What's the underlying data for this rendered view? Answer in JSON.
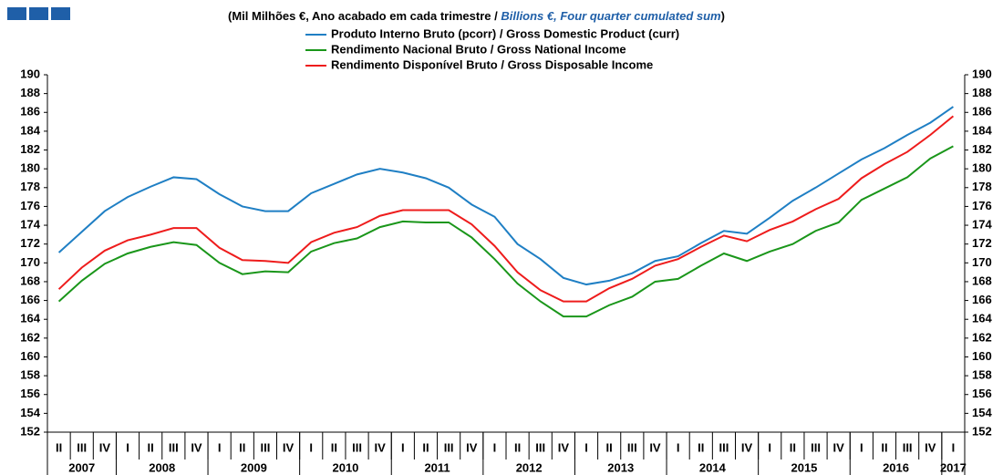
{
  "chart_data": {
    "type": "line",
    "title": "(Mil Milhões €, Ano acabado em cada trimestre /",
    "title_en": "Billions €, Four quarter cumulated sum",
    "title_close": ")",
    "categories": [
      "II",
      "III",
      "IV",
      "I",
      "II",
      "III",
      "IV",
      "I",
      "II",
      "III",
      "IV",
      "I",
      "II",
      "III",
      "IV",
      "I",
      "II",
      "III",
      "IV",
      "I",
      "II",
      "III",
      "IV",
      "I",
      "II",
      "III",
      "IV",
      "I",
      "II",
      "III",
      "IV",
      "I",
      "II",
      "III",
      "IV",
      "I",
      "II",
      "III",
      "IV",
      "I"
    ],
    "years": [
      "2007",
      "2008",
      "2009",
      "2010",
      "2011",
      "2012",
      "2013",
      "2014",
      "2015",
      "2016",
      "2017"
    ],
    "series": [
      {
        "name": "Produto Interno Bruto (pcorr) / Gross Domestic Product (curr)",
        "color": "#1f7fc4",
        "values": [
          171.1,
          173.3,
          175.5,
          177.0,
          178.1,
          179.1,
          178.9,
          177.3,
          176.0,
          175.5,
          175.5,
          177.4,
          178.4,
          179.4,
          180.0,
          179.6,
          179.0,
          178.0,
          176.2,
          174.9,
          172.0,
          170.4,
          168.4,
          167.7,
          168.1,
          168.9,
          170.2,
          170.7,
          172.1,
          173.4,
          173.1,
          174.8,
          176.6,
          178.0,
          179.5,
          181.0,
          182.2,
          183.6,
          184.9,
          186.6
        ]
      },
      {
        "name": "Rendimento Nacional Bruto / Gross National Income",
        "color": "#1a961a",
        "values": [
          165.9,
          168.1,
          169.9,
          171.0,
          171.7,
          172.2,
          171.9,
          170.0,
          168.8,
          169.1,
          169.0,
          171.2,
          172.1,
          172.6,
          173.8,
          174.4,
          174.3,
          174.3,
          172.7,
          170.4,
          167.8,
          165.9,
          164.3,
          164.3,
          165.5,
          166.4,
          168.0,
          168.3,
          169.7,
          171.0,
          170.2,
          171.2,
          172.0,
          173.4,
          174.3,
          176.7,
          177.9,
          179.1,
          181.1,
          182.4
        ]
      },
      {
        "name": "Rendimento Disponível Bruto / Gross Disposable Income",
        "color": "#ee1c1c",
        "values": [
          167.2,
          169.5,
          171.3,
          172.4,
          173.0,
          173.7,
          173.7,
          171.6,
          170.3,
          170.2,
          170.0,
          172.2,
          173.2,
          173.8,
          175.0,
          175.6,
          175.6,
          175.6,
          174.1,
          171.8,
          169.0,
          167.1,
          165.9,
          165.9,
          167.3,
          168.3,
          169.7,
          170.4,
          171.7,
          172.9,
          172.3,
          173.5,
          174.4,
          175.7,
          176.8,
          179.0,
          180.5,
          181.8,
          183.6,
          185.6
        ]
      }
    ],
    "ylim": [
      152,
      190
    ],
    "yticks": [
      152,
      154,
      156,
      158,
      160,
      162,
      164,
      166,
      168,
      170,
      172,
      174,
      176,
      178,
      180,
      182,
      184,
      186,
      188,
      190
    ],
    "grid": false
  }
}
